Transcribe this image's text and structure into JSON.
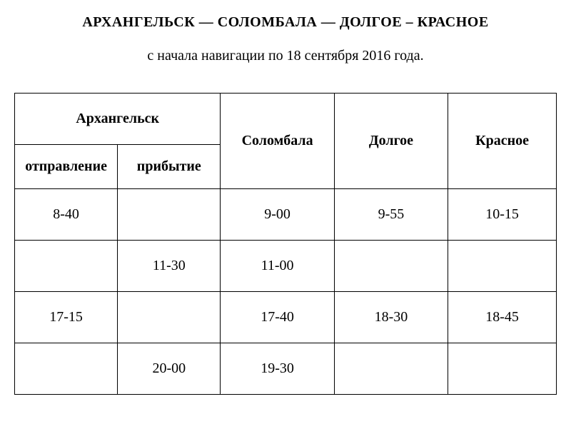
{
  "title": "АРХАНГЕЛЬСК — СОЛОМБАЛА — ДОЛГОЕ – КРАСНОЕ",
  "subtitle": "с начала навигации по 18 сентября 2016 года.",
  "table": {
    "headers": {
      "arkhangelsk": "Архангельск",
      "departure": "отправление",
      "arrival": "прибытие",
      "solombala": "Соломбала",
      "dolgoe": "Долгое",
      "krasnoe": "Красное"
    },
    "rows": [
      {
        "dep": "8-40",
        "arr": "",
        "sol": "9-00",
        "dol": "9-55",
        "kra": "10-15"
      },
      {
        "dep": "",
        "arr": "11-30",
        "sol": "11-00",
        "dol": "",
        "kra": ""
      },
      {
        "dep": "17-15",
        "arr": "",
        "sol": "17-40",
        "dol": "18-30",
        "kra": "18-45"
      },
      {
        "dep": "",
        "arr": "20-00",
        "sol": "19-30",
        "dol": "",
        "kra": ""
      }
    ],
    "border_color": "#000000",
    "background_color": "#ffffff",
    "text_color": "#000000",
    "header_fontsize": 20,
    "cell_fontsize": 20
  }
}
